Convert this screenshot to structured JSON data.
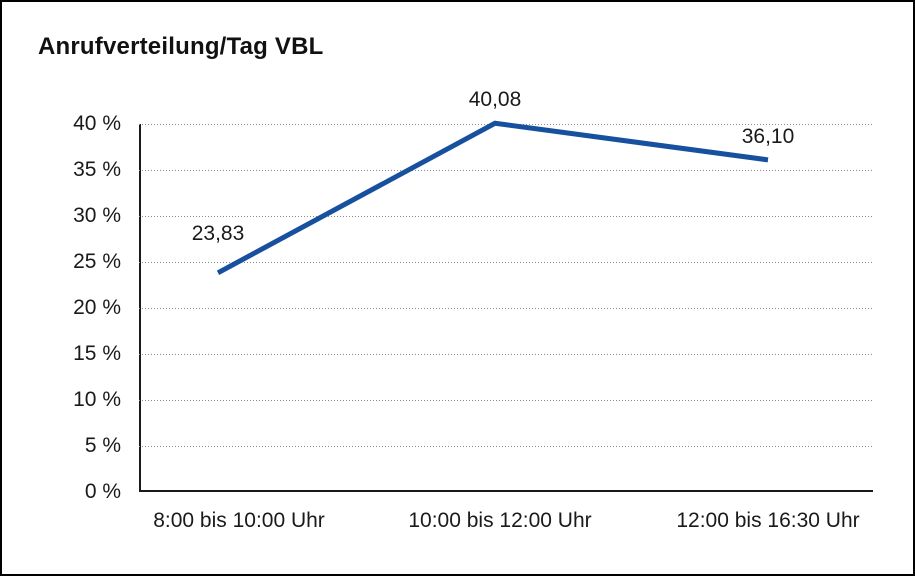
{
  "chart": {
    "title": "Anrufverteilung/Tag VBL"
  },
  "chart_data": {
    "type": "line",
    "title": "Anrufverteilung/Tag VBL",
    "categories": [
      "8:00 bis 10:00 Uhr",
      "10:00 bis 12:00 Uhr",
      "12:00 bis 16:30 Uhr"
    ],
    "values": [
      23.83,
      40.08,
      36.1
    ],
    "value_labels": [
      "23,83",
      "40,08",
      "36,10"
    ],
    "y_tick_labels": [
      "0 %",
      "5 %",
      "10 %",
      "15 %",
      "20 %",
      "25 %",
      "30 %",
      "35 %",
      "40 %"
    ],
    "y_tick_step": 5,
    "ylim": [
      0,
      40
    ],
    "xlabel": "",
    "ylabel": "",
    "grid": "horizontal-dotted",
    "legend_position": "none",
    "line_color": "#17509e",
    "axis_color": "#1a1a1a",
    "gridline_color": "#8a8a8a",
    "background_color": "#ffffff",
    "border_color": "#000000"
  }
}
